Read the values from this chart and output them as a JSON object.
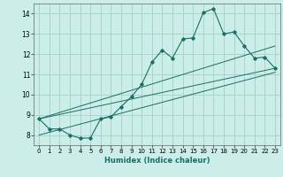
{
  "title": "",
  "xlabel": "Humidex (Indice chaleur)",
  "ylabel": "",
  "bg_color": "#cceee8",
  "grid_color": "#aad4cc",
  "line_color": "#1a6e64",
  "xlim": [
    -0.5,
    23.5
  ],
  "ylim": [
    7.5,
    14.5
  ],
  "xticks": [
    0,
    1,
    2,
    3,
    4,
    5,
    6,
    7,
    8,
    9,
    10,
    11,
    12,
    13,
    14,
    15,
    16,
    17,
    18,
    19,
    20,
    21,
    22,
    23
  ],
  "yticks": [
    8,
    9,
    10,
    11,
    12,
    13,
    14
  ],
  "main_x": [
    0,
    1,
    2,
    3,
    4,
    5,
    6,
    7,
    8,
    9,
    10,
    11,
    12,
    13,
    14,
    15,
    16,
    17,
    18,
    19,
    20,
    21,
    22,
    23
  ],
  "main_y": [
    8.8,
    8.3,
    8.3,
    8.0,
    7.85,
    7.85,
    8.8,
    8.9,
    9.4,
    9.9,
    10.5,
    11.6,
    12.2,
    11.8,
    12.75,
    12.8,
    14.05,
    14.25,
    13.0,
    13.1,
    12.4,
    11.8,
    11.85,
    11.3
  ],
  "line1_x": [
    0,
    23
  ],
  "line1_y": [
    8.8,
    11.3
  ],
  "line2_x": [
    0,
    23
  ],
  "line2_y": [
    8.8,
    12.4
  ],
  "line3_x": [
    0,
    23
  ],
  "line3_y": [
    8.0,
    11.1
  ]
}
